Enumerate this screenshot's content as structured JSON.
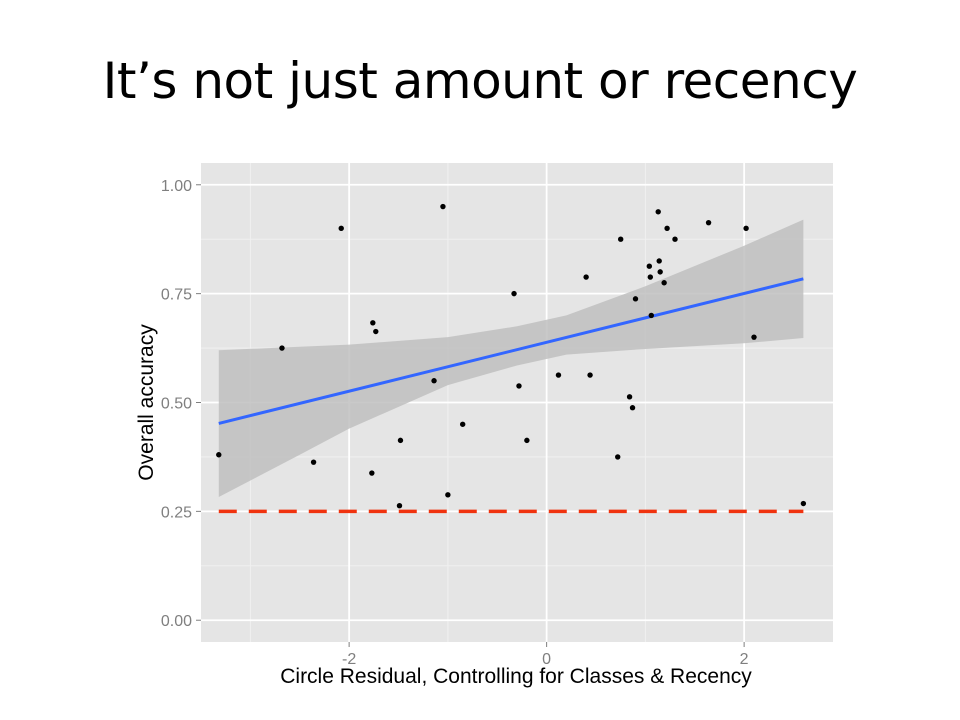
{
  "slide": {
    "title": "It’s not just amount or recency"
  },
  "colors": {
    "panel": "#e5e5e5",
    "grid_major": "#ffffff",
    "grid_minor": "#f0f0f0",
    "fit_line": "#3366ff",
    "ribbon": "#bfbfbf",
    "reference_line": "#f0330f",
    "points": "#000000"
  },
  "chart_data": {
    "type": "scatter",
    "xlabel": "Circle Residual, Controlling for Classes & Recency",
    "ylabel": "Overall accuracy",
    "xlim": [
      -3.5,
      2.9
    ],
    "ylim": [
      -0.05,
      1.05
    ],
    "x_ticks": [
      -2,
      0,
      2
    ],
    "x_tick_labels": [
      "-2",
      "0",
      "2"
    ],
    "y_ticks": [
      0,
      0.25,
      0.5,
      0.75,
      1.0
    ],
    "y_tick_labels": [
      "0.00",
      "0.25",
      "0.50",
      "0.75",
      "1.00"
    ],
    "grid": true,
    "points": [
      {
        "x": -3.32,
        "y": 0.38
      },
      {
        "x": -2.68,
        "y": 0.625
      },
      {
        "x": -2.36,
        "y": 0.363
      },
      {
        "x": -2.08,
        "y": 0.9
      },
      {
        "x": -1.76,
        "y": 0.683
      },
      {
        "x": -1.73,
        "y": 0.663
      },
      {
        "x": -1.77,
        "y": 0.338
      },
      {
        "x": -1.48,
        "y": 0.413
      },
      {
        "x": -1.49,
        "y": 0.263
      },
      {
        "x": -1.14,
        "y": 0.55
      },
      {
        "x": -1.05,
        "y": 0.95
      },
      {
        "x": -1.0,
        "y": 0.288
      },
      {
        "x": -0.85,
        "y": 0.45
      },
      {
        "x": -0.33,
        "y": 0.75
      },
      {
        "x": -0.28,
        "y": 0.538
      },
      {
        "x": -0.2,
        "y": 0.413
      },
      {
        "x": 0.12,
        "y": 0.563
      },
      {
        "x": 0.4,
        "y": 0.788
      },
      {
        "x": 0.44,
        "y": 0.563
      },
      {
        "x": 0.72,
        "y": 0.375
      },
      {
        "x": 0.75,
        "y": 0.875
      },
      {
        "x": 0.84,
        "y": 0.513
      },
      {
        "x": 0.87,
        "y": 0.488
      },
      {
        "x": 0.9,
        "y": 0.738
      },
      {
        "x": 1.04,
        "y": 0.813
      },
      {
        "x": 1.05,
        "y": 0.788
      },
      {
        "x": 1.06,
        "y": 0.7
      },
      {
        "x": 1.13,
        "y": 0.938
      },
      {
        "x": 1.14,
        "y": 0.825
      },
      {
        "x": 1.15,
        "y": 0.8
      },
      {
        "x": 1.19,
        "y": 0.775
      },
      {
        "x": 1.22,
        "y": 0.9
      },
      {
        "x": 1.3,
        "y": 0.875
      },
      {
        "x": 1.64,
        "y": 0.913
      },
      {
        "x": 2.02,
        "y": 0.9
      },
      {
        "x": 2.1,
        "y": 0.65
      },
      {
        "x": 2.6,
        "y": 0.268
      }
    ],
    "fit": {
      "x0": -3.32,
      "y0": 0.452,
      "x1": 2.6,
      "y1": 0.784
    },
    "ribbon": [
      {
        "x": -3.32,
        "lo": 0.283,
        "hi": 0.62
      },
      {
        "x": -2.5,
        "lo": 0.38,
        "hi": 0.628
      },
      {
        "x": -2.0,
        "lo": 0.44,
        "hi": 0.633
      },
      {
        "x": -1.0,
        "lo": 0.54,
        "hi": 0.65
      },
      {
        "x": -0.3,
        "lo": 0.585,
        "hi": 0.675
      },
      {
        "x": 0.2,
        "lo": 0.61,
        "hi": 0.7
      },
      {
        "x": 1.0,
        "lo": 0.623,
        "hi": 0.767
      },
      {
        "x": 2.0,
        "lo": 0.636,
        "hi": 0.86
      },
      {
        "x": 2.6,
        "lo": 0.648,
        "hi": 0.92
      }
    ],
    "reference_line": {
      "y": 0.25,
      "x0": -3.32,
      "x1": 2.6,
      "style": "dashed"
    }
  }
}
